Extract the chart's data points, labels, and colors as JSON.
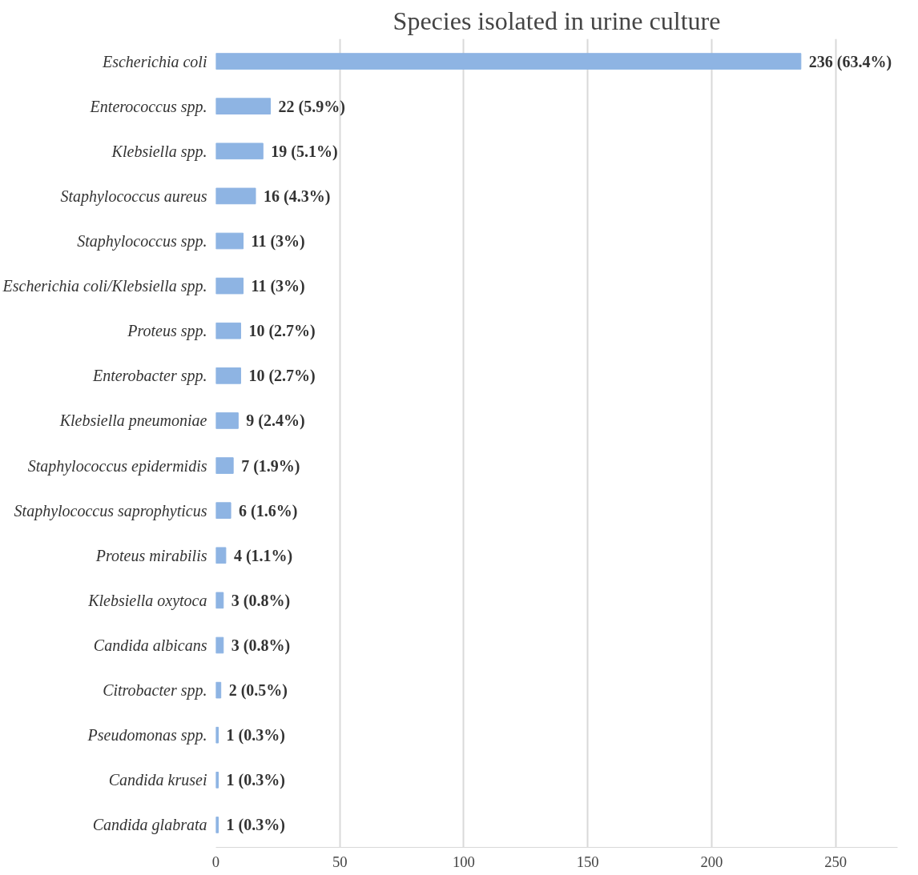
{
  "chart_data": {
    "type": "bar",
    "orientation": "horizontal",
    "title": "Species isolated in urine culture",
    "categories": [
      "Escherichia coli",
      "Enterococcus spp.",
      "Klebsiella spp.",
      "Staphylococcus aureus",
      "Staphylococcus spp.",
      "Escherichia coli/Klebsiella spp.",
      "Proteus spp.",
      "Enterobacter spp.",
      "Klebsiella pneumoniae",
      "Staphylococcus epidermidis",
      "Staphylococcus saprophyticus",
      "Proteus mirabilis",
      "Klebsiella oxytoca",
      "Candida albicans",
      "Citrobacter spp.",
      "Pseudomonas spp.",
      "Candida krusei",
      "Candida glabrata"
    ],
    "values": [
      236,
      22,
      19,
      16,
      11,
      11,
      10,
      10,
      9,
      7,
      6,
      4,
      3,
      3,
      2,
      1,
      1,
      1
    ],
    "value_labels": [
      "236 (63.4%)",
      "22 (5.9%)",
      "19 (5.1%)",
      "16 (4.3%)",
      "11 (3%)",
      "11 (3%)",
      "10 (2.7%)",
      "10 (2.7%)",
      "9 (2.4%)",
      "7 (1.9%)",
      "6 (1.6%)",
      "4 (1.1%)",
      "3 (0.8%)",
      "3 (0.8%)",
      "2 (0.5%)",
      "1 (0.3%)",
      "1 (0.3%)",
      "1 (0.3%)"
    ],
    "color": "#8eb4e3",
    "xlim": [
      0,
      275
    ],
    "xticks": [
      0,
      50,
      100,
      150,
      200,
      250
    ],
    "grid": "x"
  }
}
